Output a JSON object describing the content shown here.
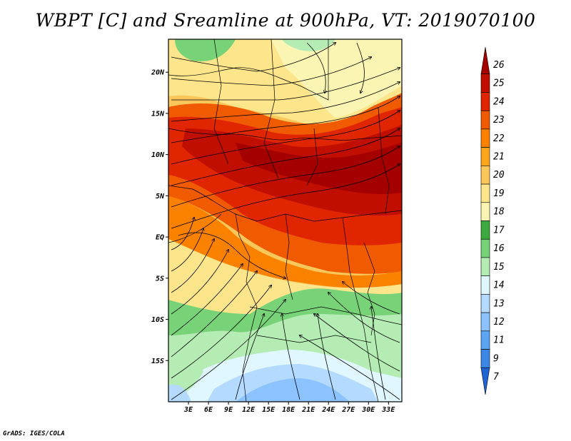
{
  "title": "WBPT [C] and Sreamline at 900hPa, VT: 2019070100",
  "credit": "GrADS: IGES/COLA",
  "map": {
    "lon_range": [
      0,
      35
    ],
    "lat_range": [
      -20,
      24
    ],
    "lat_ticks": [
      {
        "value": 20,
        "label": "20N"
      },
      {
        "value": 15,
        "label": "15N"
      },
      {
        "value": 10,
        "label": "10N"
      },
      {
        "value": 5,
        "label": "5N"
      },
      {
        "value": 0,
        "label": "EQ"
      },
      {
        "value": -5,
        "label": "5S"
      },
      {
        "value": -10,
        "label": "10S"
      },
      {
        "value": -15,
        "label": "15S"
      }
    ],
    "lon_ticks": [
      {
        "value": 3,
        "label": "3E"
      },
      {
        "value": 6,
        "label": "6E"
      },
      {
        "value": 9,
        "label": "9E"
      },
      {
        "value": 12,
        "label": "12E"
      },
      {
        "value": 15,
        "label": "15E"
      },
      {
        "value": 18,
        "label": "18E"
      },
      {
        "value": 21,
        "label": "21E"
      },
      {
        "value": 24,
        "label": "24E"
      },
      {
        "value": 27,
        "label": "27E"
      },
      {
        "value": 30,
        "label": "30E"
      },
      {
        "value": 33,
        "label": "33E"
      }
    ]
  },
  "colorbar": {
    "levels": [
      {
        "label": "26",
        "color": "#a50000"
      },
      {
        "label": "25",
        "color": "#c00f00"
      },
      {
        "label": "24",
        "color": "#e02600"
      },
      {
        "label": "23",
        "color": "#f05a00"
      },
      {
        "label": "22",
        "color": "#fb8200"
      },
      {
        "label": "21",
        "color": "#fba51a"
      },
      {
        "label": "20",
        "color": "#fcc75a"
      },
      {
        "label": "19",
        "color": "#fde58c"
      },
      {
        "label": "18",
        "color": "#fbf5b3"
      },
      {
        "label": "17",
        "color": "#3caa3c"
      },
      {
        "label": "16",
        "color": "#78d278"
      },
      {
        "label": "15",
        "color": "#b4ecb4"
      },
      {
        "label": "14",
        "color": "#e1f7ff"
      },
      {
        "label": "13",
        "color": "#b4daff"
      },
      {
        "label": "12",
        "color": "#8cc3ff"
      },
      {
        "label": "11",
        "color": "#5aa5f5"
      },
      {
        "label": "9",
        "color": "#3c87e6"
      },
      {
        "label": "7",
        "color": "#1e64d2"
      }
    ]
  }
}
